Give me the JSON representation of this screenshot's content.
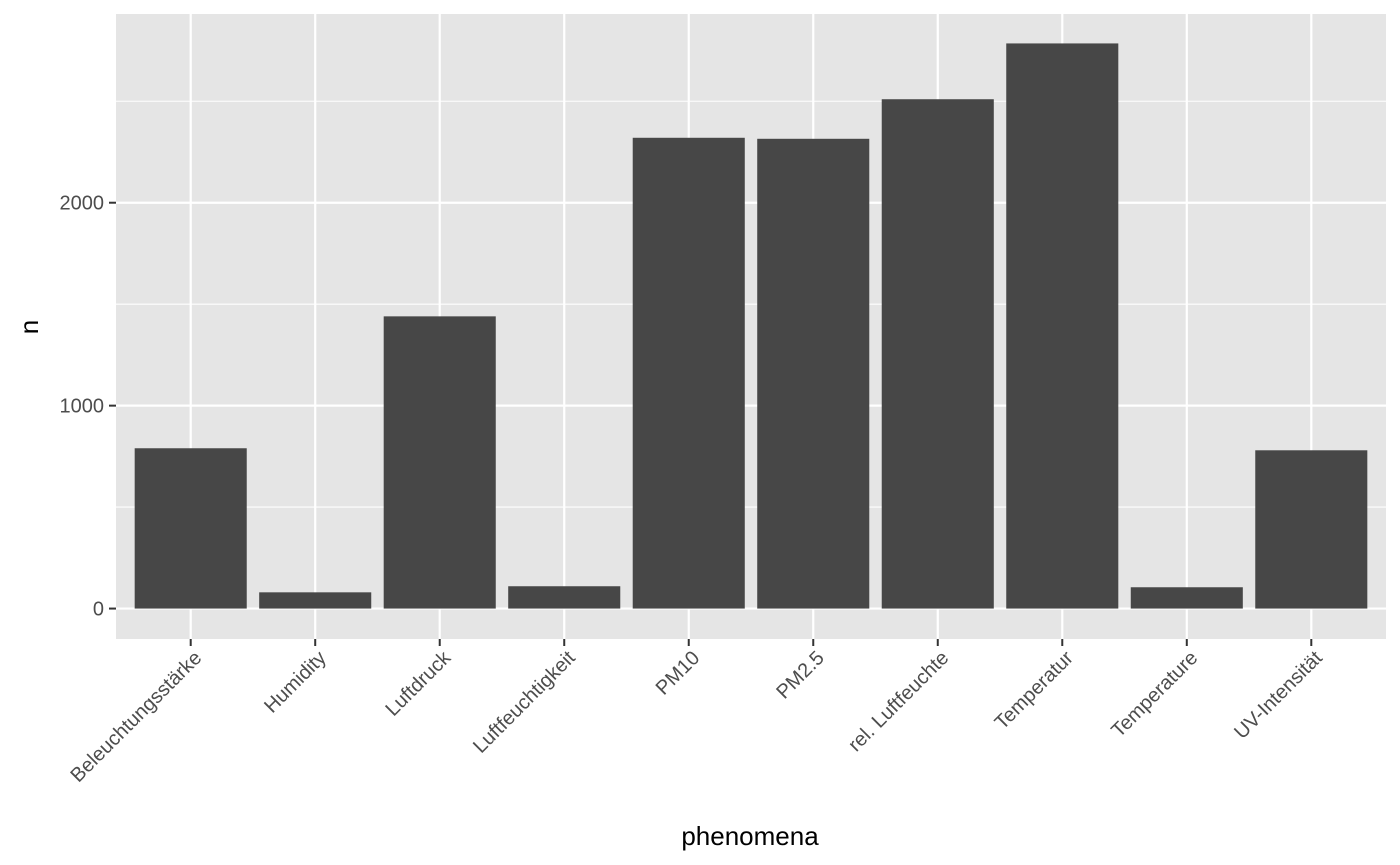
{
  "chart_data": {
    "type": "bar",
    "title": "",
    "xlabel": "phenomena",
    "ylabel": "n",
    "categories": [
      "Beleuchtungsstärke",
      "Humidity",
      "Luftdruck",
      "Luftfeuchtigkeit",
      "PM10",
      "PM2.5",
      "rel. Luftfeuchte",
      "Temperatur",
      "Temperature",
      "UV-Intensität"
    ],
    "values": [
      790,
      80,
      1440,
      110,
      2320,
      2315,
      2510,
      2785,
      105,
      780
    ],
    "ylim": [
      -150,
      2930
    ],
    "yticks": [
      0,
      1000,
      2000
    ],
    "grid": true,
    "colors": {
      "bar": "#474747",
      "panel": "#e5e5e5",
      "grid": "#ffffff",
      "tick": "#4d4d4d"
    }
  }
}
